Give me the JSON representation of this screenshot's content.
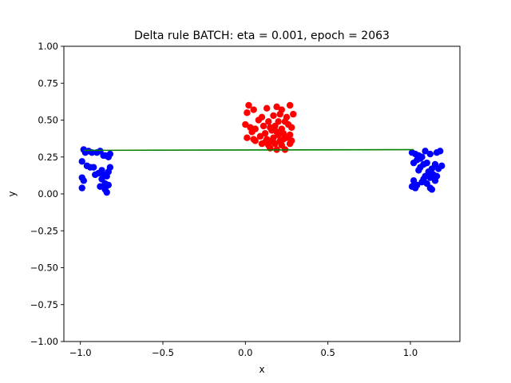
{
  "chart_data": {
    "type": "scatter",
    "title": "Delta rule BATCH: eta = 0.001, epoch = 2063",
    "xlabel": "x",
    "ylabel": "y",
    "xlim": [
      -1.1,
      1.3
    ],
    "ylim": [
      -1.0,
      1.0
    ],
    "xticks": [
      -1.0,
      -0.5,
      0.0,
      0.5,
      1.0
    ],
    "xtick_labels": [
      "−1.0",
      "−0.5",
      "0.0",
      "0.5",
      "1.0"
    ],
    "yticks": [
      -1.0,
      -0.75,
      -0.5,
      -0.25,
      0.0,
      0.25,
      0.5,
      0.75,
      1.0
    ],
    "ytick_labels": [
      "−1.00",
      "−0.75",
      "−0.50",
      "−0.25",
      "0.00",
      "0.25",
      "0.50",
      "0.75",
      "1.00"
    ],
    "grid": false,
    "legend": false,
    "series": [
      {
        "color": "#0000ff",
        "marker": "circle",
        "points": [
          [
            -0.98,
            0.3
          ],
          [
            -0.97,
            0.28
          ],
          [
            -0.95,
            0.29
          ],
          [
            -0.93,
            0.28
          ],
          [
            -0.9,
            0.28
          ],
          [
            -0.88,
            0.29
          ],
          [
            -0.85,
            0.26
          ],
          [
            -0.83,
            0.25
          ],
          [
            -0.82,
            0.27
          ],
          [
            -0.99,
            0.22
          ],
          [
            -0.96,
            0.19
          ],
          [
            -0.94,
            0.18
          ],
          [
            -0.92,
            0.18
          ],
          [
            -0.89,
            0.14
          ],
          [
            -0.87,
            0.16
          ],
          [
            -0.86,
            0.13
          ],
          [
            -0.84,
            0.12
          ],
          [
            -0.83,
            0.15
          ],
          [
            -0.82,
            0.18
          ],
          [
            -0.91,
            0.13
          ],
          [
            -0.99,
            0.11
          ],
          [
            -0.98,
            0.09
          ],
          [
            -0.87,
            0.1
          ],
          [
            -0.85,
            0.07
          ],
          [
            -0.83,
            0.06
          ],
          [
            -0.88,
            0.05
          ],
          [
            -0.85,
            0.03
          ],
          [
            -0.84,
            0.01
          ],
          [
            -0.99,
            0.04
          ],
          [
            -0.86,
            0.26
          ],
          [
            1.01,
            0.28
          ],
          [
            1.03,
            0.27
          ],
          [
            1.05,
            0.26
          ],
          [
            1.07,
            0.25
          ],
          [
            1.09,
            0.29
          ],
          [
            1.12,
            0.27
          ],
          [
            1.16,
            0.28
          ],
          [
            1.18,
            0.29
          ],
          [
            1.02,
            0.21
          ],
          [
            1.04,
            0.23
          ],
          [
            1.06,
            0.24
          ],
          [
            1.1,
            0.21
          ],
          [
            1.13,
            0.17
          ],
          [
            1.06,
            0.18
          ],
          [
            1.08,
            0.2
          ],
          [
            1.15,
            0.2
          ],
          [
            1.17,
            0.17
          ],
          [
            1.19,
            0.19
          ],
          [
            1.11,
            0.15
          ],
          [
            1.14,
            0.13
          ],
          [
            1.05,
            0.16
          ],
          [
            1.09,
            0.12
          ],
          [
            1.12,
            0.11
          ],
          [
            1.16,
            0.12
          ],
          [
            1.02,
            0.09
          ],
          [
            1.04,
            0.06
          ],
          [
            1.07,
            0.08
          ],
          [
            1.1,
            0.07
          ],
          [
            1.12,
            0.04
          ],
          [
            1.13,
            0.03
          ],
          [
            1.01,
            0.05
          ],
          [
            1.03,
            0.04
          ],
          [
            1.08,
            0.1
          ],
          [
            1.15,
            0.09
          ]
        ]
      },
      {
        "color": "#ff0000",
        "marker": "circle",
        "points": [
          [
            0.02,
            0.6
          ],
          [
            0.05,
            0.57
          ],
          [
            0.13,
            0.58
          ],
          [
            0.19,
            0.59
          ],
          [
            0.22,
            0.57
          ],
          [
            0.27,
            0.6
          ],
          [
            0.01,
            0.55
          ],
          [
            0.08,
            0.5
          ],
          [
            0.1,
            0.52
          ],
          [
            0.17,
            0.53
          ],
          [
            0.21,
            0.54
          ],
          [
            0.25,
            0.52
          ],
          [
            0.29,
            0.54
          ],
          [
            0.14,
            0.49
          ],
          [
            0.2,
            0.49
          ],
          [
            0.24,
            0.49
          ],
          [
            0.0,
            0.47
          ],
          [
            0.03,
            0.45
          ],
          [
            0.06,
            0.44
          ],
          [
            0.11,
            0.46
          ],
          [
            0.15,
            0.45
          ],
          [
            0.18,
            0.46
          ],
          [
            0.22,
            0.44
          ],
          [
            0.26,
            0.47
          ],
          [
            0.28,
            0.45
          ],
          [
            0.04,
            0.42
          ],
          [
            0.12,
            0.41
          ],
          [
            0.16,
            0.43
          ],
          [
            0.19,
            0.42
          ],
          [
            0.23,
            0.41
          ],
          [
            0.27,
            0.4
          ],
          [
            0.01,
            0.38
          ],
          [
            0.05,
            0.37
          ],
          [
            0.09,
            0.39
          ],
          [
            0.13,
            0.37
          ],
          [
            0.17,
            0.38
          ],
          [
            0.21,
            0.36
          ],
          [
            0.25,
            0.38
          ],
          [
            0.28,
            0.36
          ],
          [
            0.1,
            0.34
          ],
          [
            0.14,
            0.33
          ],
          [
            0.18,
            0.34
          ],
          [
            0.22,
            0.33
          ],
          [
            0.15,
            0.31
          ],
          [
            0.19,
            0.3
          ],
          [
            0.24,
            0.3
          ],
          [
            0.27,
            0.34
          ],
          [
            0.12,
            0.35
          ],
          [
            0.06,
            0.36
          ],
          [
            0.2,
            0.4
          ],
          [
            0.23,
            0.37
          ],
          [
            0.16,
            0.36
          ]
        ]
      }
    ],
    "line": {
      "color": "#008000",
      "x": [
        -0.98,
        1.02
      ],
      "y": [
        0.295,
        0.3
      ]
    }
  }
}
